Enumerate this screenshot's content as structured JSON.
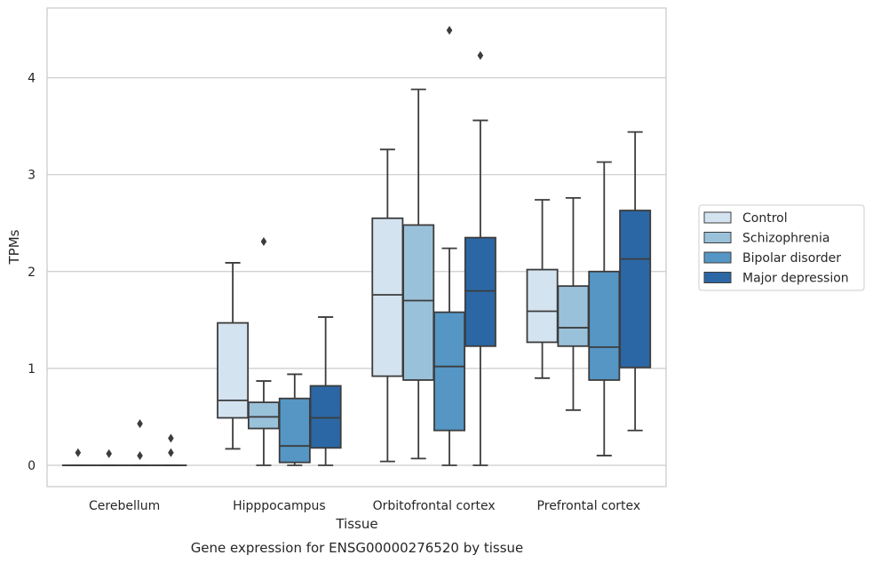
{
  "chart_data": {
    "type": "box",
    "title": "",
    "caption": "Gene expression for ENSG00000276520 by tissue",
    "xlabel": "Tissue",
    "ylabel": "TPMs",
    "ylim": [
      -0.22,
      4.72
    ],
    "yticks": [
      0,
      1,
      2,
      3,
      4
    ],
    "grid": "horizontal",
    "legend_position": "right",
    "categories": [
      "Cerebellum",
      "Hipppocampus",
      "Orbitofrontal cortex",
      "Prefrontal cortex"
    ],
    "series": [
      {
        "name": "Control",
        "color": "#d4e3f0",
        "boxes": [
          {
            "whisker_low": 0,
            "q1": 0,
            "median": 0,
            "q3": 0,
            "whisker_high": 0,
            "outliers": [
              0.13
            ]
          },
          {
            "whisker_low": 0.17,
            "q1": 0.49,
            "median": 0.67,
            "q3": 1.47,
            "whisker_high": 2.09,
            "outliers": []
          },
          {
            "whisker_low": 0.04,
            "q1": 0.92,
            "median": 1.76,
            "q3": 2.55,
            "whisker_high": 3.26,
            "outliers": []
          },
          {
            "whisker_low": 0.9,
            "q1": 1.27,
            "median": 1.59,
            "q3": 2.02,
            "whisker_high": 2.74,
            "outliers": []
          }
        ]
      },
      {
        "name": "Schizophrenia",
        "color": "#9ac1da",
        "boxes": [
          {
            "whisker_low": 0,
            "q1": 0,
            "median": 0,
            "q3": 0,
            "whisker_high": 0,
            "outliers": [
              0.12
            ]
          },
          {
            "whisker_low": 0,
            "q1": 0.38,
            "median": 0.5,
            "q3": 0.65,
            "whisker_high": 0.87,
            "outliers": [
              2.31
            ]
          },
          {
            "whisker_low": 0.07,
            "q1": 0.88,
            "median": 1.7,
            "q3": 2.48,
            "whisker_high": 3.88,
            "outliers": []
          },
          {
            "whisker_low": 0.57,
            "q1": 1.23,
            "median": 1.42,
            "q3": 1.85,
            "whisker_high": 2.76,
            "outliers": []
          }
        ]
      },
      {
        "name": "Bipolar disorder",
        "color": "#5596c5",
        "boxes": [
          {
            "whisker_low": 0,
            "q1": 0,
            "median": 0,
            "q3": 0,
            "whisker_high": 0,
            "outliers": [
              0.1,
              0.43
            ]
          },
          {
            "whisker_low": 0,
            "q1": 0.03,
            "median": 0.2,
            "q3": 0.69,
            "whisker_high": 0.94,
            "outliers": []
          },
          {
            "whisker_low": 0,
            "q1": 0.36,
            "median": 1.02,
            "q3": 1.58,
            "whisker_high": 2.24,
            "outliers": [
              4.49
            ]
          },
          {
            "whisker_low": 0.1,
            "q1": 0.88,
            "median": 1.22,
            "q3": 2.0,
            "whisker_high": 3.13,
            "outliers": []
          }
        ]
      },
      {
        "name": "Major depression",
        "color": "#2b67a4",
        "boxes": [
          {
            "whisker_low": 0,
            "q1": 0,
            "median": 0,
            "q3": 0,
            "whisker_high": 0,
            "outliers": [
              0.13,
              0.28
            ]
          },
          {
            "whisker_low": 0,
            "q1": 0.18,
            "median": 0.49,
            "q3": 0.82,
            "whisker_high": 1.53,
            "outliers": []
          },
          {
            "whisker_low": 0,
            "q1": 1.23,
            "median": 1.8,
            "q3": 2.35,
            "whisker_high": 3.56,
            "outliers": [
              4.23
            ]
          },
          {
            "whisker_low": 0.36,
            "q1": 1.01,
            "median": 2.13,
            "q3": 2.63,
            "whisker_high": 3.44,
            "outliers": []
          }
        ]
      }
    ]
  }
}
